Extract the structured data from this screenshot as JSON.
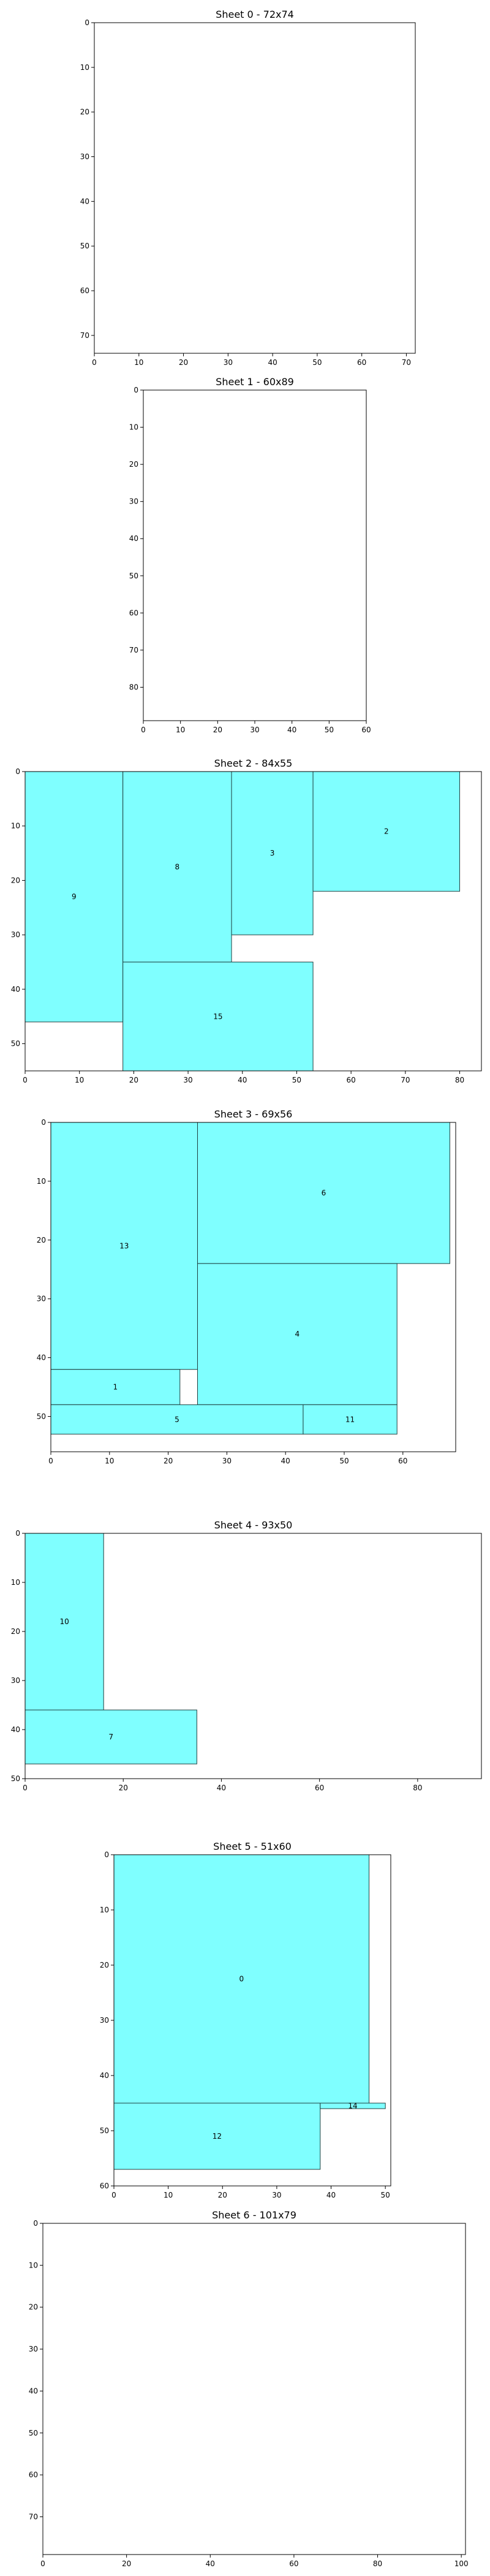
{
  "chart_data": [
    {
      "type": "rect-packing",
      "title": "Sheet 0 - 72x74",
      "xlim": [
        0,
        72
      ],
      "ylim": [
        0,
        74
      ],
      "xticks": [
        0,
        10,
        20,
        30,
        40,
        50,
        60,
        70
      ],
      "yticks": [
        0,
        10,
        20,
        30,
        40,
        50,
        60,
        70
      ],
      "pieces": []
    },
    {
      "type": "rect-packing",
      "title": "Sheet 1 - 60x89",
      "xlim": [
        0,
        60
      ],
      "ylim": [
        0,
        89
      ],
      "xticks": [
        0,
        10,
        20,
        30,
        40,
        50,
        60
      ],
      "yticks": [
        0,
        10,
        20,
        30,
        40,
        50,
        60,
        70,
        80
      ],
      "pieces": []
    },
    {
      "type": "rect-packing",
      "title": "Sheet 2 - 84x55",
      "xlim": [
        0,
        84
      ],
      "ylim": [
        0,
        55
      ],
      "xticks": [
        0,
        10,
        20,
        30,
        40,
        50,
        60,
        70,
        80
      ],
      "yticks": [
        0,
        10,
        20,
        30,
        40,
        50
      ],
      "pieces": [
        {
          "label": "9",
          "x": 0,
          "y": 0,
          "w": 18,
          "h": 46
        },
        {
          "label": "8",
          "x": 18,
          "y": 0,
          "w": 20,
          "h": 35
        },
        {
          "label": "3",
          "x": 38,
          "y": 0,
          "w": 15,
          "h": 30
        },
        {
          "label": "2",
          "x": 53,
          "y": 0,
          "w": 27,
          "h": 22
        },
        {
          "label": "15",
          "x": 18,
          "y": 35,
          "w": 35,
          "h": 20
        }
      ]
    },
    {
      "type": "rect-packing",
      "title": "Sheet 3 - 69x56",
      "xlim": [
        0,
        69
      ],
      "ylim": [
        0,
        56
      ],
      "xticks": [
        0,
        10,
        20,
        30,
        40,
        50,
        60
      ],
      "yticks": [
        0,
        10,
        20,
        30,
        40,
        50
      ],
      "pieces": [
        {
          "label": "13",
          "x": 0,
          "y": 0,
          "w": 25,
          "h": 42
        },
        {
          "label": "6",
          "x": 25,
          "y": 0,
          "w": 43,
          "h": 24
        },
        {
          "label": "4",
          "x": 25,
          "y": 24,
          "w": 34,
          "h": 24
        },
        {
          "label": "1",
          "x": 0,
          "y": 42,
          "w": 22,
          "h": 6
        },
        {
          "label": "5",
          "x": 0,
          "y": 48,
          "w": 43,
          "h": 5
        },
        {
          "label": "11",
          "x": 43,
          "y": 48,
          "w": 16,
          "h": 5
        }
      ]
    },
    {
      "type": "rect-packing",
      "title": "Sheet 4 - 93x50",
      "xlim": [
        0,
        93
      ],
      "ylim": [
        0,
        50
      ],
      "xticks": [
        0,
        20,
        40,
        60,
        80
      ],
      "yticks": [
        0,
        10,
        20,
        30,
        40,
        50
      ],
      "pieces": [
        {
          "label": "10",
          "x": 0,
          "y": 0,
          "w": 16,
          "h": 36
        },
        {
          "label": "7",
          "x": 0,
          "y": 36,
          "w": 35,
          "h": 11
        }
      ]
    },
    {
      "type": "rect-packing",
      "title": "Sheet 5 - 51x60",
      "xlim": [
        0,
        51
      ],
      "ylim": [
        0,
        60
      ],
      "xticks": [
        0,
        10,
        20,
        30,
        40,
        50
      ],
      "yticks": [
        0,
        10,
        20,
        30,
        40,
        50,
        60
      ],
      "pieces": [
        {
          "label": "0",
          "x": 0,
          "y": 0,
          "w": 47,
          "h": 45
        },
        {
          "label": "12",
          "x": 0,
          "y": 45,
          "w": 38,
          "h": 12
        },
        {
          "label": "14",
          "x": 38,
          "y": 45,
          "w": 12,
          "h": 1
        }
      ]
    },
    {
      "type": "rect-packing",
      "title": "Sheet 6 - 101x79",
      "xlim": [
        0,
        101
      ],
      "ylim": [
        0,
        79
      ],
      "xticks": [
        0,
        20,
        40,
        60,
        80,
        100
      ],
      "yticks": [
        0,
        10,
        20,
        30,
        40,
        50,
        60,
        70
      ],
      "pieces": []
    }
  ],
  "colors": {
    "piece_fill": "#7fffff",
    "piece_edge": "#1f3f3f",
    "axes": "#000000"
  }
}
